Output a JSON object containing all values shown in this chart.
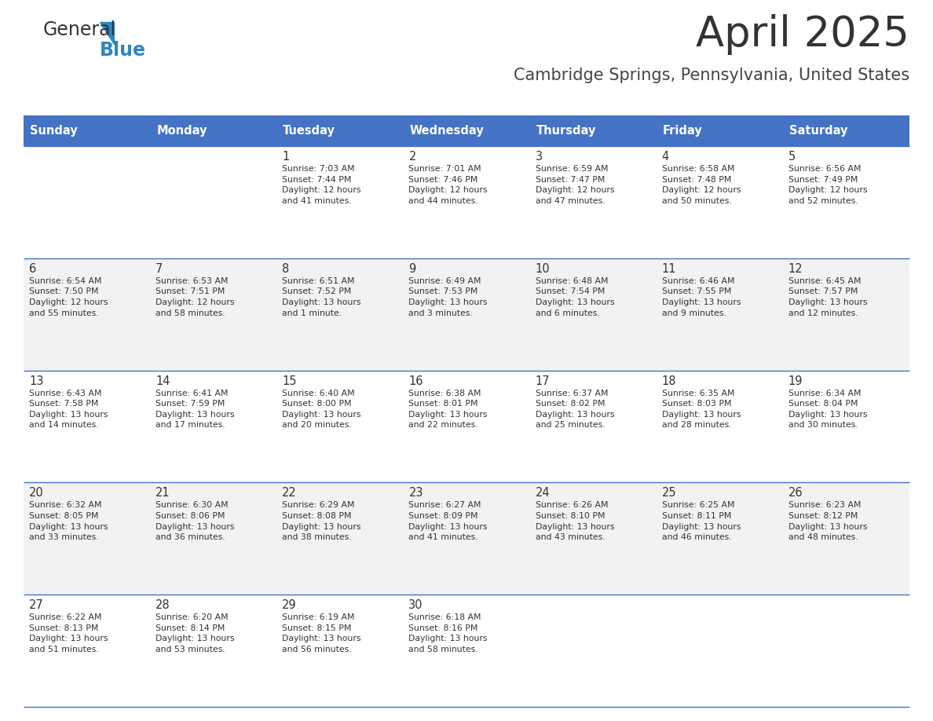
{
  "title": "April 2025",
  "subtitle": "Cambridge Springs, Pennsylvania, United States",
  "header_bg_color": "#4472C4",
  "header_text_color": "#FFFFFF",
  "cell_bg_even": "#FFFFFF",
  "cell_bg_odd": "#F2F2F2",
  "border_color": "#4472C4",
  "title_color": "#333333",
  "subtitle_color": "#444444",
  "text_color": "#333333",
  "days_of_week": [
    "Sunday",
    "Monday",
    "Tuesday",
    "Wednesday",
    "Thursday",
    "Friday",
    "Saturday"
  ],
  "calendar_data": [
    [
      {
        "day": "",
        "info": ""
      },
      {
        "day": "",
        "info": ""
      },
      {
        "day": "1",
        "info": "Sunrise: 7:03 AM\nSunset: 7:44 PM\nDaylight: 12 hours\nand 41 minutes."
      },
      {
        "day": "2",
        "info": "Sunrise: 7:01 AM\nSunset: 7:46 PM\nDaylight: 12 hours\nand 44 minutes."
      },
      {
        "day": "3",
        "info": "Sunrise: 6:59 AM\nSunset: 7:47 PM\nDaylight: 12 hours\nand 47 minutes."
      },
      {
        "day": "4",
        "info": "Sunrise: 6:58 AM\nSunset: 7:48 PM\nDaylight: 12 hours\nand 50 minutes."
      },
      {
        "day": "5",
        "info": "Sunrise: 6:56 AM\nSunset: 7:49 PM\nDaylight: 12 hours\nand 52 minutes."
      }
    ],
    [
      {
        "day": "6",
        "info": "Sunrise: 6:54 AM\nSunset: 7:50 PM\nDaylight: 12 hours\nand 55 minutes."
      },
      {
        "day": "7",
        "info": "Sunrise: 6:53 AM\nSunset: 7:51 PM\nDaylight: 12 hours\nand 58 minutes."
      },
      {
        "day": "8",
        "info": "Sunrise: 6:51 AM\nSunset: 7:52 PM\nDaylight: 13 hours\nand 1 minute."
      },
      {
        "day": "9",
        "info": "Sunrise: 6:49 AM\nSunset: 7:53 PM\nDaylight: 13 hours\nand 3 minutes."
      },
      {
        "day": "10",
        "info": "Sunrise: 6:48 AM\nSunset: 7:54 PM\nDaylight: 13 hours\nand 6 minutes."
      },
      {
        "day": "11",
        "info": "Sunrise: 6:46 AM\nSunset: 7:55 PM\nDaylight: 13 hours\nand 9 minutes."
      },
      {
        "day": "12",
        "info": "Sunrise: 6:45 AM\nSunset: 7:57 PM\nDaylight: 13 hours\nand 12 minutes."
      }
    ],
    [
      {
        "day": "13",
        "info": "Sunrise: 6:43 AM\nSunset: 7:58 PM\nDaylight: 13 hours\nand 14 minutes."
      },
      {
        "day": "14",
        "info": "Sunrise: 6:41 AM\nSunset: 7:59 PM\nDaylight: 13 hours\nand 17 minutes."
      },
      {
        "day": "15",
        "info": "Sunrise: 6:40 AM\nSunset: 8:00 PM\nDaylight: 13 hours\nand 20 minutes."
      },
      {
        "day": "16",
        "info": "Sunrise: 6:38 AM\nSunset: 8:01 PM\nDaylight: 13 hours\nand 22 minutes."
      },
      {
        "day": "17",
        "info": "Sunrise: 6:37 AM\nSunset: 8:02 PM\nDaylight: 13 hours\nand 25 minutes."
      },
      {
        "day": "18",
        "info": "Sunrise: 6:35 AM\nSunset: 8:03 PM\nDaylight: 13 hours\nand 28 minutes."
      },
      {
        "day": "19",
        "info": "Sunrise: 6:34 AM\nSunset: 8:04 PM\nDaylight: 13 hours\nand 30 minutes."
      }
    ],
    [
      {
        "day": "20",
        "info": "Sunrise: 6:32 AM\nSunset: 8:05 PM\nDaylight: 13 hours\nand 33 minutes."
      },
      {
        "day": "21",
        "info": "Sunrise: 6:30 AM\nSunset: 8:06 PM\nDaylight: 13 hours\nand 36 minutes."
      },
      {
        "day": "22",
        "info": "Sunrise: 6:29 AM\nSunset: 8:08 PM\nDaylight: 13 hours\nand 38 minutes."
      },
      {
        "day": "23",
        "info": "Sunrise: 6:27 AM\nSunset: 8:09 PM\nDaylight: 13 hours\nand 41 minutes."
      },
      {
        "day": "24",
        "info": "Sunrise: 6:26 AM\nSunset: 8:10 PM\nDaylight: 13 hours\nand 43 minutes."
      },
      {
        "day": "25",
        "info": "Sunrise: 6:25 AM\nSunset: 8:11 PM\nDaylight: 13 hours\nand 46 minutes."
      },
      {
        "day": "26",
        "info": "Sunrise: 6:23 AM\nSunset: 8:12 PM\nDaylight: 13 hours\nand 48 minutes."
      }
    ],
    [
      {
        "day": "27",
        "info": "Sunrise: 6:22 AM\nSunset: 8:13 PM\nDaylight: 13 hours\nand 51 minutes."
      },
      {
        "day": "28",
        "info": "Sunrise: 6:20 AM\nSunset: 8:14 PM\nDaylight: 13 hours\nand 53 minutes."
      },
      {
        "day": "29",
        "info": "Sunrise: 6:19 AM\nSunset: 8:15 PM\nDaylight: 13 hours\nand 56 minutes."
      },
      {
        "day": "30",
        "info": "Sunrise: 6:18 AM\nSunset: 8:16 PM\nDaylight: 13 hours\nand 58 minutes."
      },
      {
        "day": "",
        "info": ""
      },
      {
        "day": "",
        "info": ""
      },
      {
        "day": "",
        "info": ""
      }
    ]
  ],
  "logo_general_color": "#333333",
  "logo_blue_color": "#2E86C1",
  "logo_triangle_color": "#2E86C1"
}
